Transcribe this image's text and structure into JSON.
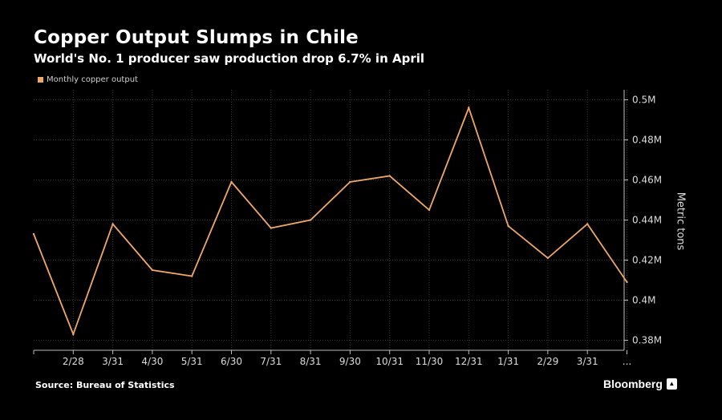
{
  "header": {
    "title": "Copper Output Slumps in Chile",
    "subtitle": "World's No. 1 producer saw production drop 6.7% in April"
  },
  "footer": {
    "source": "Source: Bureau of Statistics",
    "brand": "Bloomberg"
  },
  "colors": {
    "background": "#000000",
    "line": "#f0a868",
    "grid": "#3a3a3a"
  },
  "chart_data": {
    "type": "line",
    "series": [
      {
        "name": "Monthly copper output",
        "values": [
          0.433,
          0.383,
          0.438,
          0.415,
          0.412,
          0.459,
          0.436,
          0.44,
          0.459,
          0.462,
          0.445,
          0.496,
          0.437,
          0.421,
          0.438,
          0.409
        ]
      }
    ],
    "xticks": [
      "2/28",
      "3/31",
      "4/30",
      "5/31",
      "6/30",
      "7/31",
      "8/31",
      "9/30",
      "10/31",
      "11/30",
      "12/31",
      "1/31",
      "2/29",
      "3/31",
      "..."
    ],
    "yticks": [
      "0.38M",
      "0.4M",
      "0.42M",
      "0.44M",
      "0.46M",
      "0.48M",
      "0.5M"
    ],
    "ylabel": "Metric tons",
    "ylim": [
      0.375,
      0.505
    ],
    "grid": true,
    "legend_position": "top-left"
  }
}
